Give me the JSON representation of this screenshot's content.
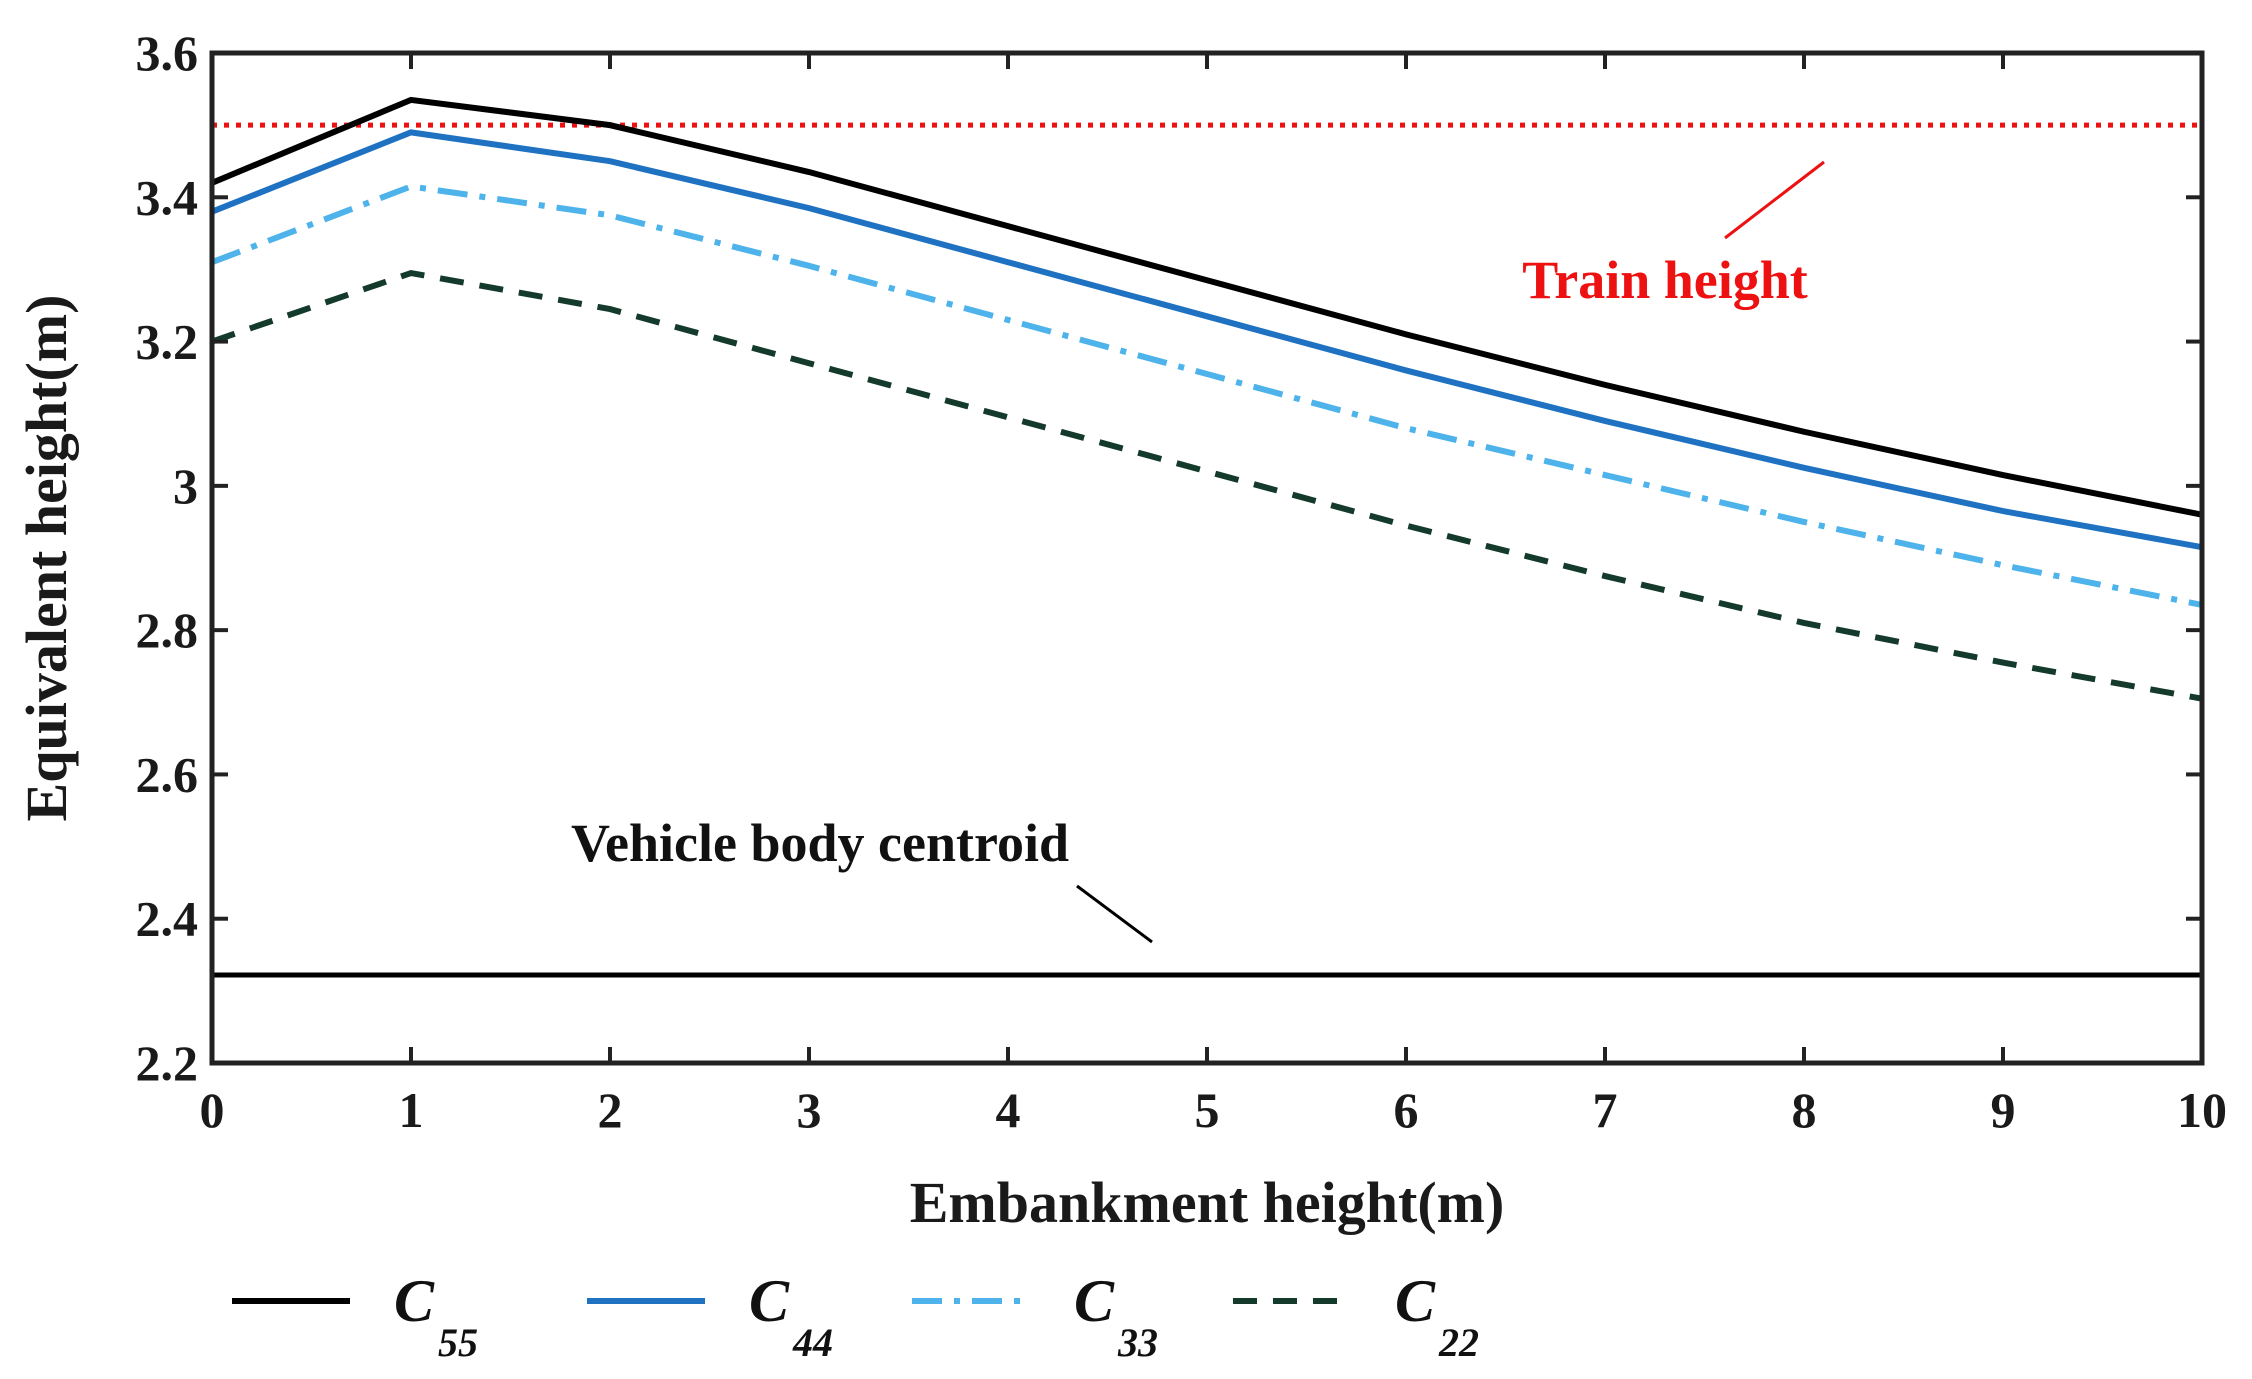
{
  "chart_data": {
    "type": "line",
    "title": "",
    "xlabel": "Embankment height(m)",
    "ylabel": "Equivalent height(m)",
    "xlim": [
      0,
      10
    ],
    "ylim": [
      2.2,
      3.6
    ],
    "grid": false,
    "x": [
      0,
      1,
      2,
      3,
      4,
      5,
      6,
      7,
      8,
      9,
      10
    ],
    "xticks": [
      "0",
      "1",
      "2",
      "3",
      "4",
      "5",
      "6",
      "7",
      "8",
      "9",
      "10"
    ],
    "yticks": [
      {
        "value": 2.2,
        "label": "2.2"
      },
      {
        "value": 2.4,
        "label": "2.4"
      },
      {
        "value": 2.6,
        "label": "2.6"
      },
      {
        "value": 2.8,
        "label": "2.8"
      },
      {
        "value": 3.0,
        "label": "3"
      },
      {
        "value": 3.2,
        "label": "3.2"
      },
      {
        "value": 3.4,
        "label": "3.4"
      },
      {
        "value": 3.6,
        "label": "3.6"
      }
    ],
    "series": [
      {
        "name": "C55",
        "base": "C",
        "sub": "55",
        "color": "#000000",
        "dash": "",
        "values": [
          3.42,
          3.535,
          3.5,
          3.435,
          3.36,
          3.285,
          3.21,
          3.14,
          3.075,
          3.015,
          2.96
        ]
      },
      {
        "name": "C44",
        "base": "C",
        "sub": "44",
        "color": "#1f72c2",
        "dash": "",
        "values": [
          3.38,
          3.49,
          3.45,
          3.385,
          3.31,
          3.235,
          3.16,
          3.09,
          3.025,
          2.965,
          2.915
        ]
      },
      {
        "name": "C33",
        "base": "C",
        "sub": "33",
        "color": "#4db3ea",
        "dash": "30,12,6,12",
        "values": [
          3.31,
          3.415,
          3.375,
          3.305,
          3.23,
          3.155,
          3.08,
          3.015,
          2.95,
          2.89,
          2.835
        ]
      },
      {
        "name": "C22",
        "base": "C",
        "sub": "22",
        "color": "#143a2c",
        "dash": "24,16",
        "values": [
          3.2,
          3.295,
          3.245,
          3.17,
          3.095,
          3.02,
          2.945,
          2.875,
          2.81,
          2.755,
          2.705
        ]
      }
    ],
    "reference_lines": [
      {
        "name": "Train height",
        "value": 3.5,
        "color": "#ee1111",
        "style": "dotted"
      },
      {
        "name": "Vehicle body centroid",
        "value": 2.322,
        "color": "#000000",
        "style": "solid"
      }
    ],
    "annotations": [
      {
        "text": "Train height",
        "color": "#ee1111"
      },
      {
        "text": "Vehicle body centroid",
        "color": "#000000"
      }
    ],
    "legend_position": "bottom"
  }
}
